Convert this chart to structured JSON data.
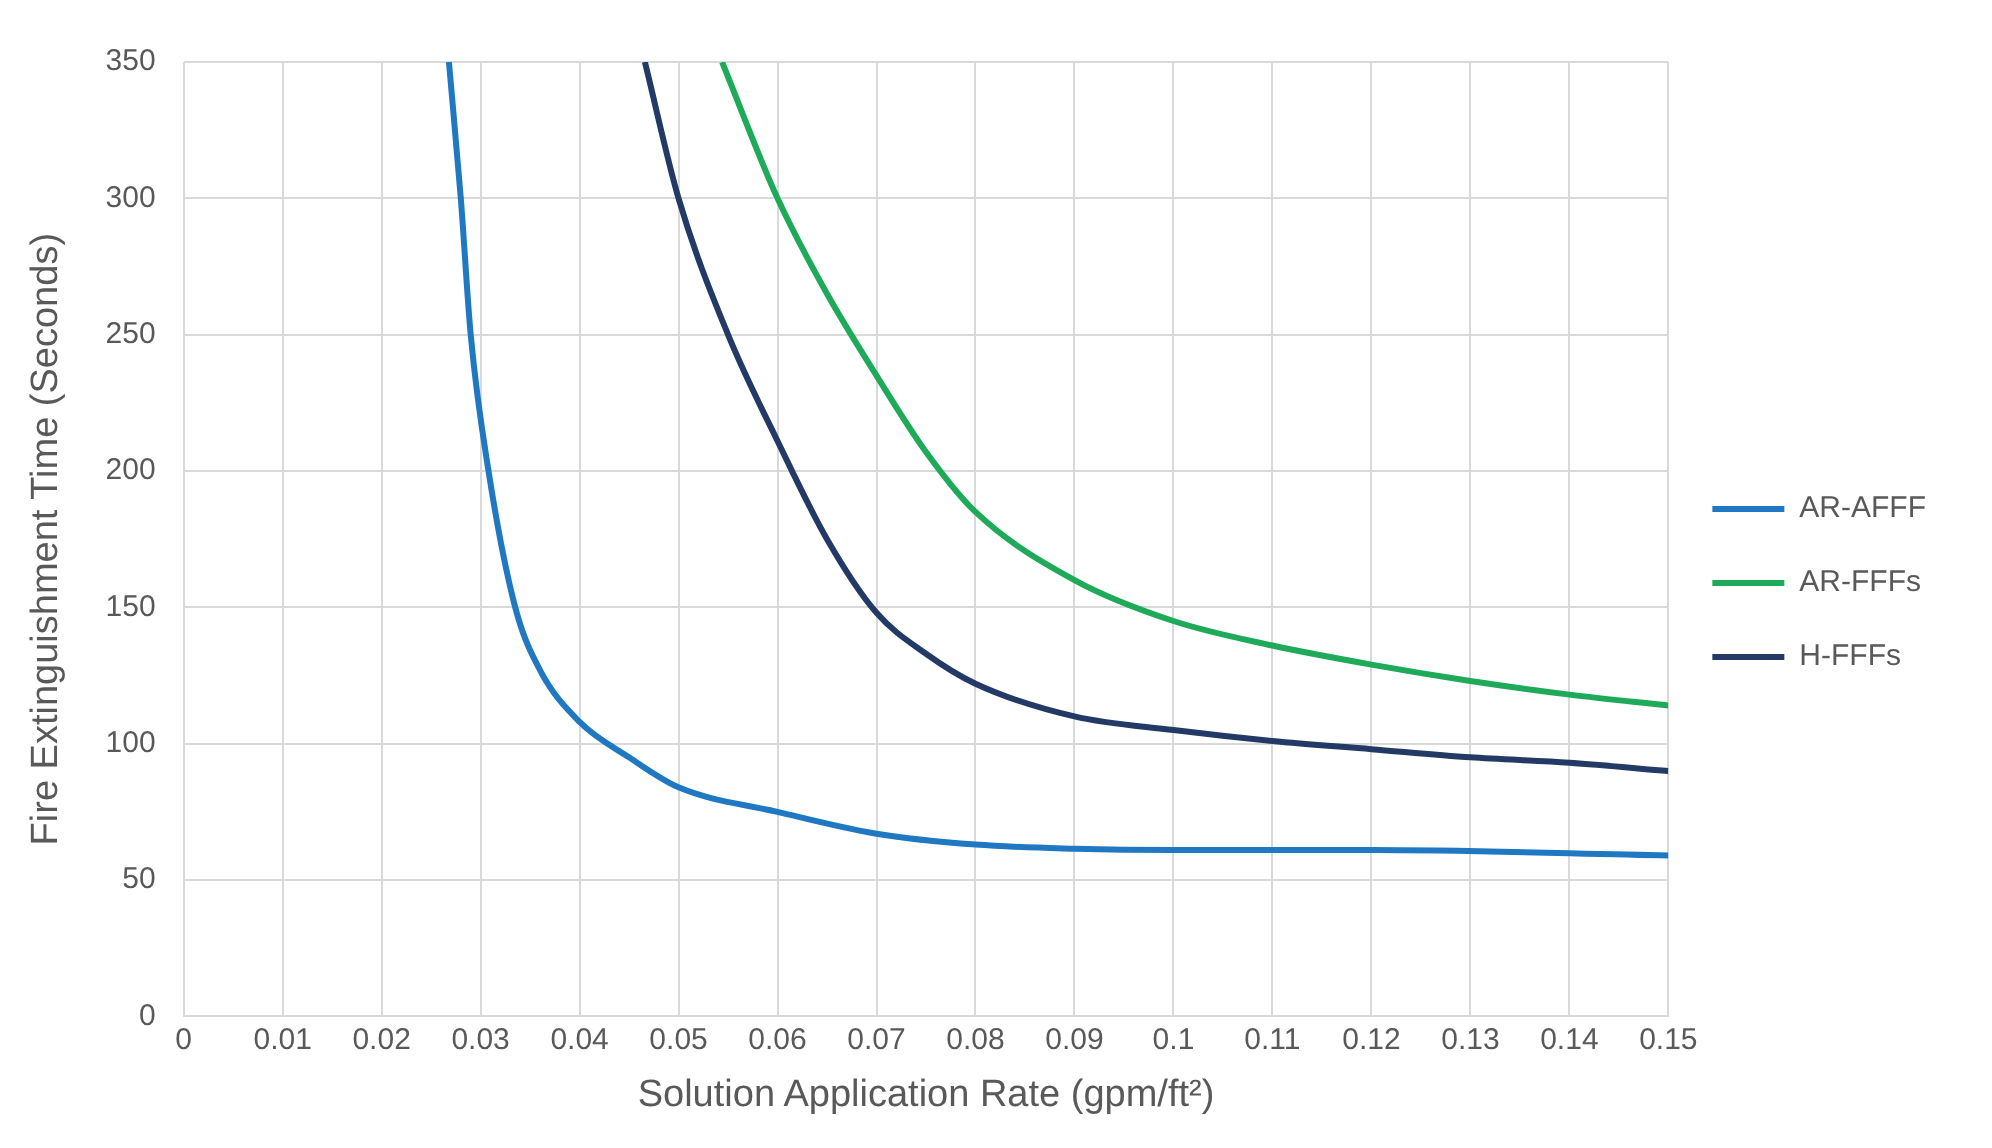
{
  "chart_data": {
    "type": "line",
    "xlabel": "Solution Application Rate (gpm/ft²)",
    "ylabel": "Fire Extinguishment Time (Seconds)",
    "xlim": [
      0,
      0.15
    ],
    "xticks": [
      0,
      0.01,
      0.02,
      0.03,
      0.04,
      0.05,
      0.06,
      0.07,
      0.08,
      0.09,
      0.1,
      0.11,
      0.12,
      0.13,
      0.14,
      0.15
    ],
    "ylim": [
      0,
      350
    ],
    "yticks": [
      0,
      50,
      100,
      150,
      200,
      250,
      300,
      350
    ],
    "grid": true,
    "legend": "right",
    "marker": "none",
    "line_style": "solid",
    "series": [
      {
        "name": "AR-AFFF",
        "color": "#1f78c1",
        "x": [
          0.0268,
          0.028,
          0.029,
          0.0308,
          0.0335,
          0.036,
          0.04,
          0.045,
          0.05,
          0.06,
          0.07,
          0.08,
          0.09,
          0.1,
          0.12,
          0.15
        ],
        "values": [
          350,
          300,
          250,
          200,
          150,
          127,
          108,
          95,
          84,
          75,
          67,
          63,
          61.5,
          61,
          61,
          59
        ]
      },
      {
        "name": "AR-FFFs",
        "color": "#1faa59",
        "x": [
          0.0544,
          0.06,
          0.065,
          0.07,
          0.075,
          0.08,
          0.09,
          0.1,
          0.11,
          0.12,
          0.13,
          0.14,
          0.15
        ],
        "values": [
          350,
          300,
          265,
          235,
          207,
          185,
          160,
          145,
          136,
          129,
          123,
          118,
          114
        ]
      },
      {
        "name": "H-FFFs",
        "color": "#243a66",
        "x": [
          0.0466,
          0.05,
          0.055,
          0.06,
          0.065,
          0.07,
          0.075,
          0.08,
          0.09,
          0.1,
          0.11,
          0.12,
          0.13,
          0.14,
          0.15
        ],
        "values": [
          350,
          300,
          250,
          211,
          175,
          148,
          133,
          122,
          110,
          105,
          101,
          98,
          95,
          93,
          90
        ]
      }
    ]
  }
}
